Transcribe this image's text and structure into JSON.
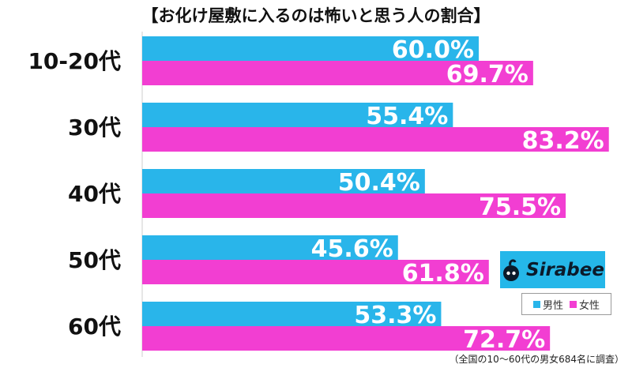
{
  "chart_data": {
    "type": "bar",
    "orientation": "horizontal",
    "title": "【お化け屋敷に入るのは怖いと思う人の割合】",
    "categories": [
      "10-20代",
      "30代",
      "40代",
      "50代",
      "60代"
    ],
    "series": [
      {
        "name": "男性",
        "color": "#29b5ea",
        "values": [
          60.0,
          55.4,
          50.4,
          45.6,
          53.3
        ]
      },
      {
        "name": "女性",
        "color": "#f23ed2",
        "values": [
          69.7,
          83.2,
          75.5,
          61.8,
          72.7
        ]
      }
    ],
    "value_suffix": "%",
    "xlim": [
      0,
      100
    ],
    "grid": false,
    "legend_position": "bottom-right"
  },
  "logo": {
    "text": "Sirabee"
  },
  "source_note": "（全国の10〜60代の男女684名に調査）"
}
